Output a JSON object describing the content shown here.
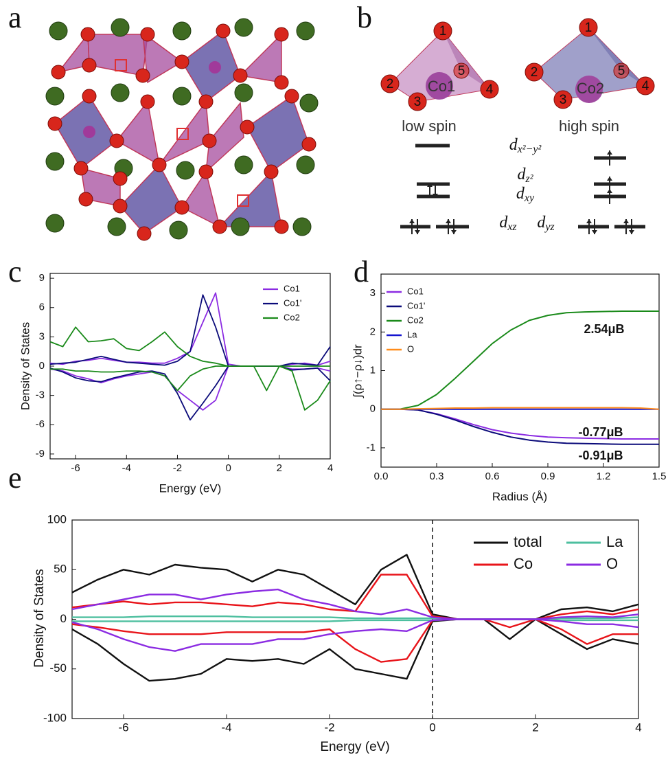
{
  "panel_labels": [
    "a",
    "b",
    "c",
    "d",
    "e"
  ],
  "diagram": {
    "co1": "Co1",
    "co2": "Co2",
    "atom_numbers": [
      "1",
      "2",
      "3",
      "4",
      "5"
    ],
    "low_spin": "low spin",
    "high_spin": "high spin",
    "orbitals": [
      {
        "symbol": "d",
        "subscript": "x²−y²"
      },
      {
        "symbol": "d",
        "subscript": "z²"
      },
      {
        "symbol": "d",
        "subscript": "xy"
      },
      {
        "symbol": "d",
        "subscript": "xz"
      },
      {
        "symbol": "d",
        "subscript": "yz"
      }
    ]
  },
  "chart_data": [
    {
      "type": "line",
      "x_label": "Energy (eV)",
      "y_label": "Density of States",
      "x": [
        -7,
        -6.5,
        -6,
        -5.5,
        -5,
        -4.5,
        -4,
        -3.5,
        -3,
        -2.5,
        -2,
        -1.5,
        -1,
        -0.5,
        0,
        0.5,
        1,
        1.5,
        2,
        2.5,
        3,
        3.5,
        4
      ],
      "xlim": [
        -7,
        4
      ],
      "xticks": [
        -6,
        -4,
        -2,
        0,
        2,
        4
      ],
      "ylim": [
        -9.5,
        9.5
      ],
      "yticks": [
        -9,
        -6,
        -3,
        0,
        3,
        6,
        9
      ],
      "legend": "upper right",
      "series": [
        {
          "name": "Co1",
          "color": "#8b2be2",
          "values": [
            0.3,
            0.2,
            0.5,
            0.6,
            0.8,
            0.6,
            0.4,
            0.4,
            0.3,
            0.3,
            0.8,
            1.5,
            4.5,
            7.5,
            0.2,
            0,
            0,
            0,
            0,
            0.2,
            0.3,
            0.1,
            0.5
          ],
          "values_down": [
            -0.3,
            -0.5,
            -1.0,
            -1.3,
            -1.7,
            -1.3,
            -1.0,
            -0.8,
            -0.6,
            -1.0,
            -2.5,
            -3.5,
            -4.5,
            -3.5,
            0,
            0,
            0,
            0,
            0,
            -0.3,
            -0.3,
            -0.2,
            -0.5
          ]
        },
        {
          "name": "Co1'",
          "color": "#0b0b7a",
          "values": [
            0.2,
            0.3,
            0.4,
            0.7,
            1.0,
            0.7,
            0.4,
            0.3,
            0.2,
            0.1,
            0.5,
            1.5,
            7.3,
            4.0,
            0,
            0,
            0,
            0,
            0,
            0.3,
            0.2,
            0.1,
            2.0
          ],
          "values_down": [
            -0.2,
            -0.6,
            -1.2,
            -1.5,
            -1.6,
            -1.2,
            -0.9,
            -0.6,
            -0.5,
            -0.8,
            -2.8,
            -5.5,
            -3.8,
            -2.0,
            0,
            0,
            0,
            0,
            0,
            -0.4,
            -0.3,
            -0.2,
            -1.5
          ]
        },
        {
          "name": "Co2",
          "color": "#1a8a1a",
          "values": [
            2.5,
            2.0,
            4.0,
            2.5,
            2.6,
            2.8,
            1.8,
            1.6,
            2.5,
            3.5,
            2.0,
            1.0,
            0.5,
            0.3,
            0,
            0,
            0,
            0,
            0,
            0,
            0,
            0,
            0
          ],
          "values_down": [
            -0.3,
            -0.3,
            -0.5,
            -0.5,
            -0.6,
            -0.6,
            -0.5,
            -0.5,
            -0.6,
            -1.0,
            -2.5,
            -1.0,
            -0.3,
            0,
            0,
            0,
            0,
            -2.5,
            0,
            -0.5,
            -4.5,
            -3.5,
            -1.5
          ]
        }
      ]
    },
    {
      "type": "line",
      "x_label": "Radius (Å)",
      "y_label": "∫(ρ↑−ρ↓)dr",
      "x": [
        0,
        0.1,
        0.2,
        0.3,
        0.4,
        0.5,
        0.6,
        0.7,
        0.8,
        0.9,
        1.0,
        1.1,
        1.2,
        1.3,
        1.4,
        1.5
      ],
      "xlim": [
        0,
        1.5
      ],
      "xticks": [
        {
          "value": 0,
          "label": "0.0"
        },
        0.3,
        0.6,
        0.9,
        1.2,
        1.5
      ],
      "ylim": [
        -1.5,
        3.5
      ],
      "yticks": [
        -1,
        0,
        1,
        2,
        3
      ],
      "legend": "upper left",
      "series": [
        {
          "name": "Co1",
          "color": "#8b2be2",
          "values": [
            0,
            0,
            -0.02,
            -0.12,
            -0.25,
            -0.4,
            -0.53,
            -0.62,
            -0.68,
            -0.72,
            -0.74,
            -0.75,
            -0.76,
            -0.77,
            -0.77,
            -0.77
          ]
        },
        {
          "name": "Co1'",
          "color": "#0b0b7a",
          "values": [
            0,
            0,
            -0.02,
            -0.13,
            -0.28,
            -0.45,
            -0.6,
            -0.72,
            -0.8,
            -0.85,
            -0.88,
            -0.89,
            -0.9,
            -0.91,
            -0.91,
            -0.91
          ]
        },
        {
          "name": "Co2",
          "color": "#1a8a1a",
          "values": [
            0,
            0,
            0.1,
            0.38,
            0.8,
            1.25,
            1.7,
            2.05,
            2.3,
            2.43,
            2.5,
            2.52,
            2.53,
            2.54,
            2.54,
            2.54
          ]
        },
        {
          "name": "La",
          "color": "#1515d0",
          "values": [
            0,
            0,
            0,
            0,
            0,
            0,
            0,
            0,
            0,
            0,
            0,
            0,
            0,
            0,
            0,
            0
          ]
        },
        {
          "name": "O",
          "color": "#ff8c1a",
          "values": [
            0,
            0,
            0.01,
            0.02,
            0.03,
            0.03,
            0.04,
            0.04,
            0.04,
            0.04,
            0.04,
            0.04,
            0.04,
            0.04,
            0.03,
            0
          ]
        }
      ],
      "annotations": [
        "2.54μB",
        "-0.77μB",
        "-0.91μB"
      ]
    },
    {
      "type": "line",
      "x_label": "Energy (eV)",
      "y_label": "Density of States",
      "x": [
        -7,
        -6.5,
        -6,
        -5.5,
        -5,
        -4.5,
        -4,
        -3.5,
        -3,
        -2.5,
        -2,
        -1.5,
        -1,
        -0.5,
        0,
        0.5,
        1,
        1.5,
        2,
        2.5,
        3,
        3.5,
        4
      ],
      "xlim": [
        -7,
        4
      ],
      "xticks": [
        -6,
        -4,
        -2,
        0,
        2,
        4
      ],
      "ylim": [
        -100,
        100
      ],
      "yticks": [
        -100,
        -50,
        0,
        50,
        100
      ],
      "legend": "upper right",
      "legend_columns": 2,
      "vline": 0,
      "series": [
        {
          "name": "total",
          "color": "#111111",
          "values": [
            27,
            40,
            50,
            45,
            55,
            52,
            50,
            38,
            50,
            45,
            30,
            15,
            50,
            65,
            5,
            0,
            0,
            0,
            0,
            10,
            12,
            8,
            15
          ],
          "values_down": [
            -10,
            -25,
            -45,
            -62,
            -60,
            -55,
            -40,
            -42,
            -40,
            -45,
            -30,
            -50,
            -55,
            -60,
            -2,
            0,
            0,
            -20,
            0,
            -15,
            -30,
            -20,
            -25
          ]
        },
        {
          "name": "Co",
          "color": "#e8141a",
          "values": [
            12,
            15,
            18,
            15,
            17,
            17,
            15,
            13,
            17,
            15,
            10,
            8,
            45,
            45,
            3,
            0,
            0,
            0,
            0,
            5,
            8,
            5,
            10
          ],
          "values_down": [
            -5,
            -8,
            -12,
            -15,
            -15,
            -15,
            -13,
            -13,
            -13,
            -13,
            -10,
            -30,
            -43,
            -40,
            -1,
            0,
            0,
            -8,
            0,
            -10,
            -25,
            -15,
            -15
          ]
        },
        {
          "name": "La",
          "color": "#4dbf9f",
          "values": [
            2,
            2,
            2,
            3,
            3,
            3,
            3,
            2,
            2,
            2,
            2,
            1,
            1,
            1,
            1,
            0,
            0,
            0,
            0,
            1,
            1,
            1,
            2
          ],
          "values_down": [
            -2,
            -2,
            -2,
            -2,
            -2,
            -2,
            -2,
            -2,
            -2,
            -2,
            -2,
            -1,
            -1,
            -1,
            -1,
            0,
            0,
            0,
            0,
            -1,
            -1,
            -1,
            -1
          ]
        },
        {
          "name": "O",
          "color": "#8b2be2",
          "values": [
            10,
            15,
            20,
            25,
            25,
            20,
            25,
            28,
            30,
            20,
            15,
            8,
            5,
            10,
            2,
            0,
            0,
            0,
            0,
            2,
            3,
            2,
            5
          ],
          "values_down": [
            -3,
            -10,
            -20,
            -28,
            -32,
            -25,
            -25,
            -25,
            -20,
            -20,
            -15,
            -12,
            -10,
            -12,
            -1,
            0,
            0,
            0,
            0,
            -2,
            -5,
            -5,
            -8
          ]
        }
      ]
    }
  ]
}
